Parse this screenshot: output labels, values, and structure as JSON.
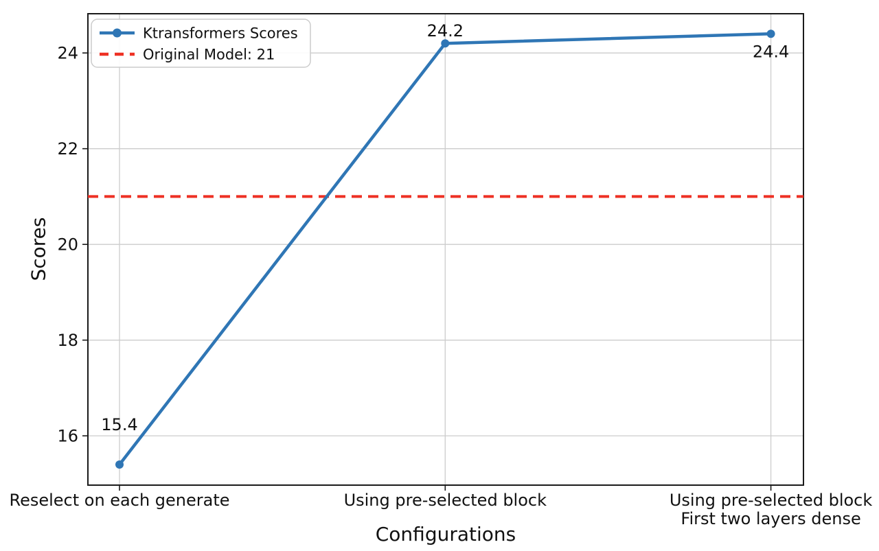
{
  "figure": {
    "background": "#ffffff"
  },
  "chart_data": {
    "type": "line",
    "title": "",
    "xlabel": "Configurations",
    "ylabel": "Scores",
    "categories": [
      "Reselect on each generate",
      "Using pre-selected block",
      "Using pre-selected block\nFirst two layers dense"
    ],
    "series": [
      {
        "name": "Ktransformers Scores",
        "values": [
          15.4,
          24.2,
          24.4
        ],
        "color": "#2f76b5",
        "style": "solid",
        "marker": "circle"
      }
    ],
    "point_labels": [
      "15.4",
      "24.2",
      "24.4"
    ],
    "reference_line": {
      "label": "Original Model: 21",
      "value": 21,
      "color": "#ee3124",
      "style": "dashed"
    },
    "yticks": [
      16,
      18,
      20,
      22,
      24
    ],
    "ylim": [
      14.97,
      24.82
    ],
    "xlim": [
      -0.097,
      2.1
    ],
    "grid": true,
    "grid_color": "#cccccc",
    "spine_color": "#1a1a1a",
    "text_color": "#111111",
    "legend_position": "upper-left"
  }
}
